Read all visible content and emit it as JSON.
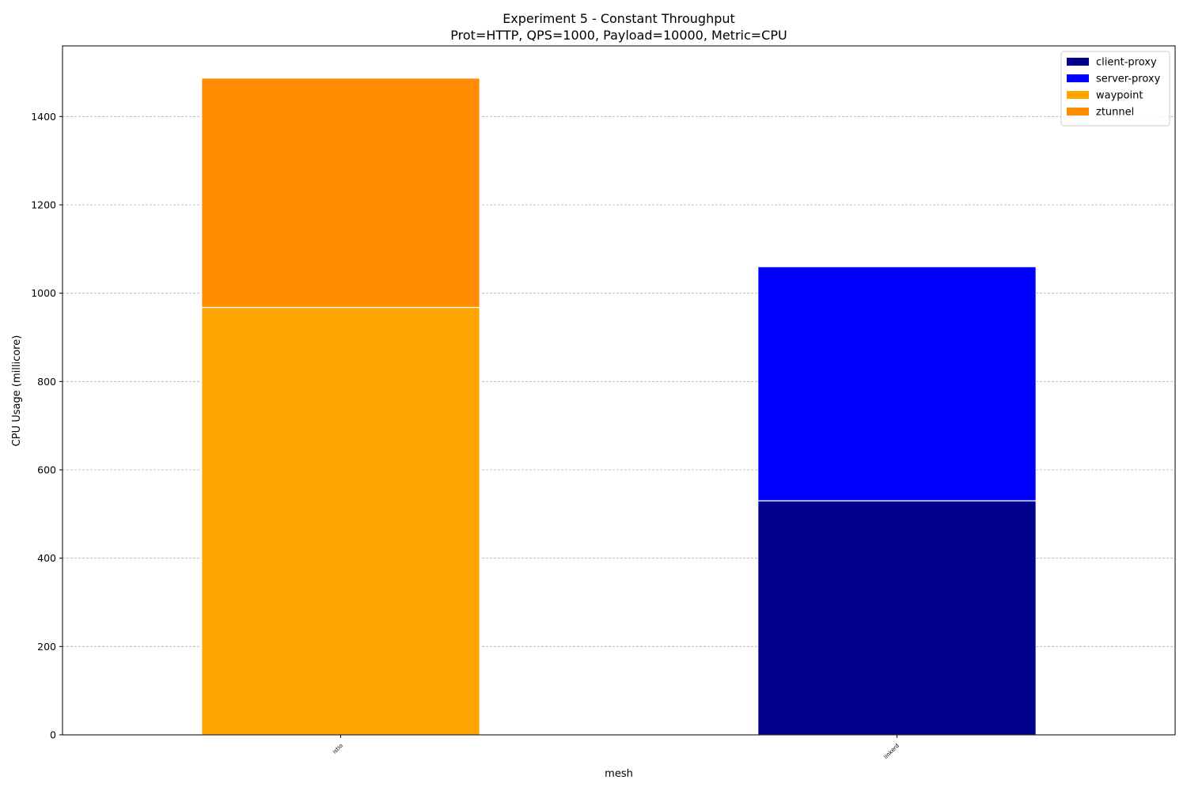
{
  "chart_data": {
    "type": "bar",
    "stacked": true,
    "title": "Experiment 5 - Constant Throughput",
    "subtitle": "Prot=HTTP, QPS=1000, Payload=10000, Metric=CPU",
    "xlabel": "mesh",
    "ylabel": "CPU Usage (millicore)",
    "categories": [
      "istio",
      "linkerd"
    ],
    "ylim": [
      0,
      1560
    ],
    "yticks": [
      0,
      200,
      400,
      600,
      800,
      1000,
      1200,
      1400
    ],
    "grid": true,
    "legend_position": "top-right",
    "series": [
      {
        "name": "client-proxy",
        "color": "#00008b",
        "values": [
          0,
          530
        ]
      },
      {
        "name": "server-proxy",
        "color": "#0000ff",
        "values": [
          0,
          530
        ]
      },
      {
        "name": "waypoint",
        "color": "#ffa500",
        "values": [
          968,
          0
        ]
      },
      {
        "name": "ztunnel",
        "color": "#ff8c00",
        "values": [
          519,
          0
        ]
      }
    ]
  }
}
